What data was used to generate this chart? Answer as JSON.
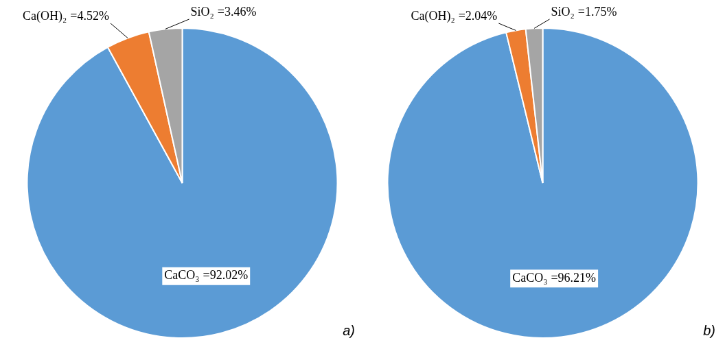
{
  "chart_data": [
    {
      "type": "pie",
      "categories": [
        "CaCO₃",
        "Ca(OH)₂",
        "SiO₂"
      ],
      "values": [
        92.02,
        4.52,
        3.46
      ],
      "colors": [
        "#5b9bd5",
        "#ed7d31",
        "#a5a5a5"
      ],
      "value_labels": [
        "=92.02%",
        "=4.52%",
        "=3.46%"
      ],
      "annotations": [
        "a)"
      ]
    },
    {
      "type": "pie",
      "categories": [
        "CaCO₃",
        "Ca(OH)₂",
        "SiO₂"
      ],
      "values": [
        96.21,
        2.04,
        1.75
      ],
      "colors": [
        "#5b9bd5",
        "#ed7d31",
        "#a5a5a5"
      ],
      "value_labels": [
        "=96.21%",
        "=2.04%",
        "=1.75%"
      ],
      "annotations": [
        "b)"
      ]
    }
  ]
}
